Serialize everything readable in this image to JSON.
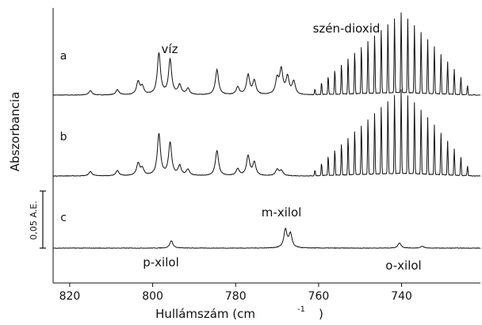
{
  "chart_data": {
    "type": "line",
    "xlabel": "Hullámszám (cm",
    "xlabel_sup": "-1",
    "ylabel": "Abszorbancia",
    "x_range": [
      824,
      721
    ],
    "x_ticks": [
      820,
      800,
      780,
      760,
      740
    ],
    "x_tick_labels": [
      "820",
      "800",
      "780",
      "760",
      "740"
    ],
    "series": [
      {
        "name": "a",
        "baseline": 0.0,
        "peaks": [
          [
            815.0,
            0.1
          ],
          [
            808.5,
            0.12
          ],
          [
            803.5,
            0.3
          ],
          [
            802.5,
            0.18
          ],
          [
            798.5,
            0.95
          ],
          [
            795.8,
            0.8
          ],
          [
            793.5,
            0.22
          ],
          [
            791.5,
            0.14
          ],
          [
            784.5,
            0.58
          ],
          [
            779.5,
            0.18
          ],
          [
            777.0,
            0.45
          ],
          [
            775.5,
            0.32
          ],
          [
            770.0,
            0.35
          ],
          [
            769.0,
            0.55
          ],
          [
            767.5,
            0.4
          ],
          [
            766.0,
            0.3
          ]
        ],
        "co2_band": {
          "start": 762.0,
          "end": 722.5,
          "spacing": 1.6,
          "center": 740.0,
          "max": 1.85
        }
      },
      {
        "name": "b",
        "baseline": 0.0,
        "peaks": [
          [
            815.0,
            0.1
          ],
          [
            808.5,
            0.12
          ],
          [
            803.5,
            0.28
          ],
          [
            802.5,
            0.16
          ],
          [
            798.5,
            0.95
          ],
          [
            795.8,
            0.75
          ],
          [
            793.5,
            0.22
          ],
          [
            791.5,
            0.14
          ],
          [
            784.5,
            0.58
          ],
          [
            779.5,
            0.16
          ],
          [
            777.0,
            0.45
          ],
          [
            775.5,
            0.3
          ],
          [
            770.0,
            0.14
          ],
          [
            769.0,
            0.12
          ]
        ],
        "co2_band": {
          "start": 762.0,
          "end": 722.5,
          "spacing": 1.6,
          "center": 740.0,
          "max": 1.95
        }
      },
      {
        "name": "c",
        "baseline": 0.0,
        "peaks": [
          [
            795.5,
            0.17
          ],
          [
            768.0,
            0.42
          ],
          [
            766.8,
            0.32
          ],
          [
            740.5,
            0.12
          ],
          [
            735.0,
            0.04
          ]
        ],
        "co2_band": null
      }
    ],
    "trace_labels": [
      {
        "text": "a",
        "x": 821.5,
        "trace": "a",
        "dy": 0.82
      },
      {
        "text": "b",
        "x": 821.5,
        "trace": "b",
        "dy": 0.82
      },
      {
        "text": "c",
        "x": 821.5,
        "trace": "c",
        "dy": 0.62
      }
    ],
    "annotations": {
      "viz": "víz",
      "szen_dioxid": "szén-dioxid",
      "m_xilol": "m-xilol",
      "p_xilol": "p-xilol",
      "o_xilol": "o-xilol"
    },
    "scale_bar": {
      "label": "0,05  A.E.",
      "value": 0.05
    },
    "grid": false
  }
}
